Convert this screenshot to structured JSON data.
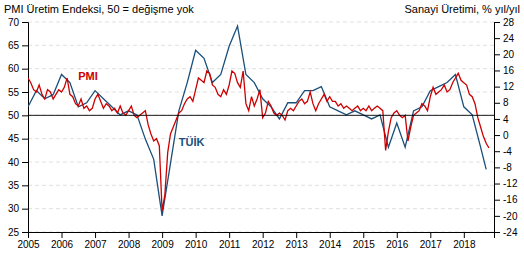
{
  "chart_data": {
    "type": "line",
    "title": "PMI Üretim Endeksi, 50 = değişme yok",
    "subtitle": "Sanayi Üretimi, % yıl/yıl",
    "xlim": [
      2005.0,
      2018.9
    ],
    "xticks": [
      2005,
      2006,
      2007,
      2008,
      2009,
      2010,
      2011,
      2012,
      2013,
      2014,
      2015,
      2016,
      2017,
      2018
    ],
    "ylim": [
      25,
      70
    ],
    "yticks": [
      25,
      30,
      35,
      40,
      45,
      50,
      55,
      60,
      65,
      70
    ],
    "y2lim": [
      -24,
      28
    ],
    "y2ticks": [
      -24,
      -20,
      -16,
      -12,
      -8,
      -4,
      0,
      4,
      8,
      12,
      16,
      20,
      24,
      28
    ],
    "grid": true,
    "hline": {
      "y": 50,
      "color": "#000000"
    },
    "annotations": [
      {
        "text": "PMI",
        "x": 2006.5,
        "y": 57.5,
        "color": "#cc0000"
      },
      {
        "text": "TÜİK",
        "x": 2009.5,
        "y": 43.5,
        "color": "#1a4f7a"
      }
    ],
    "series": [
      {
        "color": "#1a4f7a",
        "axis": "y2",
        "x": [
          2005.0,
          2005.25,
          2005.5,
          2005.75,
          2006.0,
          2006.25,
          2006.5,
          2006.75,
          2007.0,
          2007.25,
          2007.5,
          2007.75,
          2008.0,
          2008.25,
          2008.5,
          2008.75,
          2009.0,
          2009.25,
          2009.5,
          2009.75,
          2010.0,
          2010.25,
          2010.5,
          2010.75,
          2011.0,
          2011.25,
          2011.5,
          2011.75,
          2012.0,
          2012.25,
          2012.5,
          2012.75,
          2013.0,
          2013.25,
          2013.5,
          2013.75,
          2014.0,
          2014.25,
          2014.5,
          2014.75,
          2015.0,
          2015.25,
          2015.5,
          2015.75,
          2016.0,
          2016.25,
          2016.5,
          2016.75,
          2017.0,
          2017.25,
          2017.5,
          2017.75,
          2018.0,
          2018.25,
          2018.5,
          2018.667
        ],
        "values": [
          7.0,
          11.0,
          9.0,
          10.0,
          15.0,
          13.0,
          7.0,
          8.0,
          11.0,
          9.0,
          7.0,
          5.0,
          6.0,
          5.0,
          -1.0,
          -6.0,
          -20.0,
          -7.0,
          6.0,
          13.0,
          21.0,
          19.0,
          13.0,
          15.0,
          22.0,
          27.0,
          15.0,
          13.0,
          9.0,
          7.0,
          4.0,
          8.0,
          8.0,
          11.0,
          11.0,
          12.0,
          7.0,
          6.0,
          5.0,
          6.0,
          5.0,
          4.0,
          5.0,
          -3.0,
          3.0,
          -3.0,
          6.0,
          7.0,
          11.0,
          12.0,
          13.0,
          15.0,
          7.0,
          5.0,
          -3.0,
          -8.5
        ]
      },
      {
        "color": "#cc0000",
        "x": [
          2005.0,
          2005.083,
          2005.167,
          2005.25,
          2005.333,
          2005.417,
          2005.5,
          2005.583,
          2005.667,
          2005.75,
          2005.833,
          2005.917,
          2006.0,
          2006.083,
          2006.167,
          2006.25,
          2006.333,
          2006.417,
          2006.5,
          2006.583,
          2006.667,
          2006.75,
          2006.833,
          2006.917,
          2007.0,
          2007.083,
          2007.167,
          2007.25,
          2007.333,
          2007.417,
          2007.5,
          2007.583,
          2007.667,
          2007.75,
          2007.833,
          2007.917,
          2008.0,
          2008.083,
          2008.167,
          2008.25,
          2008.333,
          2008.417,
          2008.5,
          2008.583,
          2008.667,
          2008.75,
          2008.833,
          2008.917,
          2009.0,
          2009.083,
          2009.167,
          2009.25,
          2009.333,
          2009.417,
          2009.5,
          2009.583,
          2009.667,
          2009.75,
          2009.833,
          2009.917,
          2010.0,
          2010.083,
          2010.167,
          2010.25,
          2010.333,
          2010.417,
          2010.5,
          2010.583,
          2010.667,
          2010.75,
          2010.833,
          2010.917,
          2011.0,
          2011.083,
          2011.167,
          2011.25,
          2011.333,
          2011.417,
          2011.5,
          2011.583,
          2011.667,
          2011.75,
          2011.833,
          2011.917,
          2012.0,
          2012.083,
          2012.167,
          2012.25,
          2012.333,
          2012.417,
          2012.5,
          2012.583,
          2012.667,
          2012.75,
          2012.833,
          2012.917,
          2013.0,
          2013.083,
          2013.167,
          2013.25,
          2013.333,
          2013.417,
          2013.5,
          2013.583,
          2013.667,
          2013.75,
          2013.833,
          2013.917,
          2014.0,
          2014.083,
          2014.167,
          2014.25,
          2014.333,
          2014.417,
          2014.5,
          2014.583,
          2014.667,
          2014.75,
          2014.833,
          2014.917,
          2015.0,
          2015.083,
          2015.167,
          2015.25,
          2015.333,
          2015.417,
          2015.5,
          2015.583,
          2015.667,
          2015.75,
          2015.833,
          2015.917,
          2016.0,
          2016.083,
          2016.167,
          2016.25,
          2016.333,
          2016.417,
          2016.5,
          2016.583,
          2016.667,
          2016.75,
          2016.833,
          2016.917,
          2017.0,
          2017.083,
          2017.167,
          2017.25,
          2017.333,
          2017.417,
          2017.5,
          2017.583,
          2017.667,
          2017.75,
          2017.833,
          2017.917,
          2018.0,
          2018.083,
          2018.167,
          2018.25,
          2018.333,
          2018.417,
          2018.5,
          2018.583,
          2018.667,
          2018.75
        ],
        "values": [
          58.0,
          57.0,
          55.5,
          55.0,
          56.5,
          54.5,
          53.5,
          55.5,
          55.0,
          53.5,
          54.5,
          55.5,
          55.0,
          56.0,
          58.0,
          54.5,
          54.0,
          52.5,
          52.0,
          53.5,
          51.5,
          52.0,
          51.0,
          51.5,
          53.5,
          54.5,
          53.0,
          51.5,
          52.5,
          52.0,
          51.0,
          51.5,
          50.5,
          52.0,
          50.5,
          50.0,
          51.0,
          52.0,
          50.0,
          49.5,
          50.0,
          50.5,
          51.0,
          48.0,
          46.0,
          44.5,
          45.0,
          43.5,
          29.5,
          33.0,
          42.0,
          46.0,
          47.5,
          49.0,
          50.5,
          51.0,
          52.5,
          53.5,
          54.0,
          53.0,
          55.5,
          58.0,
          57.5,
          57.0,
          59.5,
          59.0,
          56.5,
          56.0,
          54.5,
          54.0,
          55.5,
          54.5,
          56.5,
          59.5,
          59.0,
          57.0,
          56.0,
          59.5,
          52.5,
          51.0,
          54.0,
          52.0,
          53.5,
          55.5,
          49.5,
          50.5,
          53.0,
          52.0,
          50.5,
          50.0,
          50.5,
          50.0,
          49.0,
          51.0,
          51.5,
          51.0,
          52.0,
          53.0,
          53.5,
          52.5,
          53.0,
          55.0,
          52.5,
          51.0,
          52.5,
          53.5,
          54.5,
          53.0,
          54.0,
          53.0,
          53.0,
          52.0,
          52.5,
          51.5,
          52.0,
          51.5,
          51.0,
          51.5,
          52.0,
          51.0,
          51.5,
          51.0,
          52.0,
          51.0,
          51.5,
          52.0,
          51.5,
          51.0,
          42.5,
          46.5,
          49.5,
          50.5,
          51.0,
          50.0,
          49.5,
          50.0,
          44.5,
          47.5,
          50.0,
          50.5,
          51.0,
          52.5,
          52.0,
          51.0,
          54.0,
          56.0,
          54.5,
          55.0,
          55.5,
          56.5,
          55.0,
          55.5,
          57.0,
          58.0,
          59.0,
          57.5,
          57.0,
          56.5,
          54.5,
          54.0,
          52.5,
          49.5,
          47.5,
          45.5,
          44.0,
          43.0
        ]
      }
    ]
  }
}
